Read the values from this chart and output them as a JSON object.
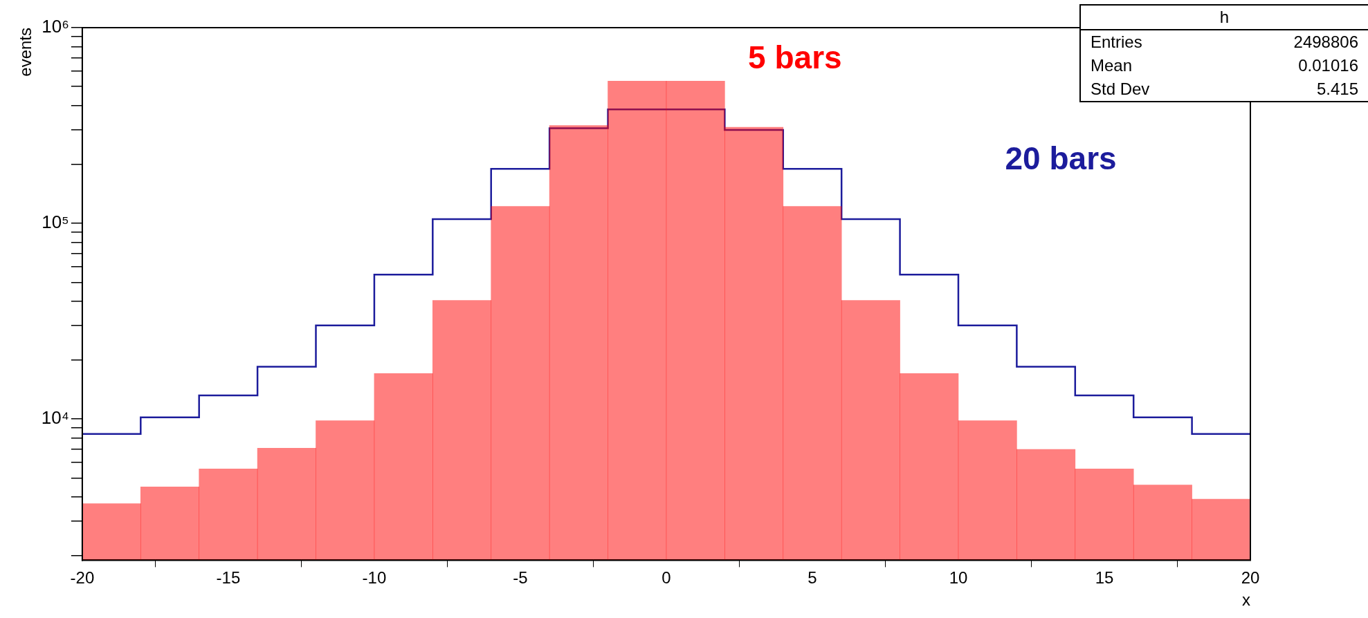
{
  "chart_data": {
    "type": "histogram",
    "xlabel": "x",
    "ylabel": "events",
    "bins": [
      -20,
      -18,
      -16,
      -14,
      -12,
      -10,
      -8,
      -6,
      -4,
      -2,
      0,
      2,
      4,
      6,
      8,
      10,
      12,
      14,
      16,
      18,
      20
    ],
    "series": [
      {
        "name": "5 bars",
        "color": "#ff0000",
        "values": [
          3700,
          4500,
          5560,
          7100,
          9800,
          17100,
          40400,
          122000,
          316000,
          533000,
          533000,
          310000,
          122000,
          40400,
          17100,
          9800,
          7000,
          5560,
          4600,
          3900
        ]
      },
      {
        "name": "20 bars",
        "color": "#1c1c9c",
        "values": [
          8400,
          10200,
          13200,
          18500,
          30100,
          54700,
          105000,
          190000,
          306000,
          382000,
          382000,
          300000,
          190000,
          105000,
          54700,
          30100,
          18500,
          13200,
          10200,
          8400
        ]
      }
    ],
    "log": "y",
    "grid": false,
    "legend": false,
    "xlim": [
      -20,
      20
    ],
    "xticks": [
      -20,
      -15,
      -10,
      -5,
      0,
      5,
      10,
      15,
      20
    ],
    "ylim": [
      1900,
      1000000
    ],
    "yticks": [
      {
        "value": 2000,
        "label": null
      },
      {
        "value": 3000,
        "label": null
      },
      {
        "value": 4000,
        "label": null
      },
      {
        "value": 5000,
        "label": null
      },
      {
        "value": 6000,
        "label": null
      },
      {
        "value": 7000,
        "label": null
      },
      {
        "value": 8000,
        "label": null
      },
      {
        "value": 9000,
        "label": null
      },
      {
        "value": 10000,
        "label": "10⁴"
      },
      {
        "value": 20000,
        "label": null
      },
      {
        "value": 30000,
        "label": null
      },
      {
        "value": 40000,
        "label": null
      },
      {
        "value": 50000,
        "label": null
      },
      {
        "value": 60000,
        "label": null
      },
      {
        "value": 70000,
        "label": null
      },
      {
        "value": 80000,
        "label": null
      },
      {
        "value": 90000,
        "label": null
      },
      {
        "value": 100000,
        "label": "10⁵"
      },
      {
        "value": 200000,
        "label": null
      },
      {
        "value": 300000,
        "label": null
      },
      {
        "value": 400000,
        "label": null
      },
      {
        "value": 500000,
        "label": null
      },
      {
        "value": 600000,
        "label": null
      },
      {
        "value": 700000,
        "label": null
      },
      {
        "value": 800000,
        "label": null
      },
      {
        "value": 900000,
        "label": null
      },
      {
        "value": 1000000,
        "label": "10⁶"
      }
    ],
    "annotations": [
      "h",
      "Entries",
      "2498806",
      "Mean",
      "0.01016",
      "Std Dev",
      "5.415"
    ]
  }
}
